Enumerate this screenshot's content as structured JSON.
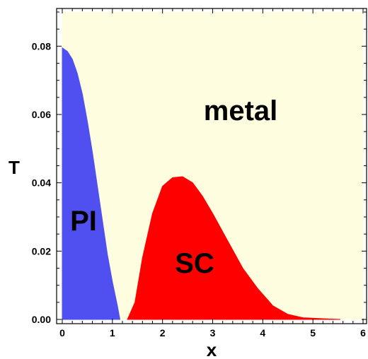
{
  "chart_data": {
    "type": "area",
    "xlabel": "x",
    "ylabel": "T",
    "xlim": [
      0,
      6
    ],
    "ylim": [
      0,
      0.09
    ],
    "x_ticks": [
      "0",
      "1",
      "2",
      "3",
      "4",
      "5",
      "6"
    ],
    "y_ticks": [
      "0.00",
      "0.02",
      "0.04",
      "0.06",
      "0.08"
    ],
    "regions": [
      {
        "label": "metal",
        "color": "#fffde0"
      },
      {
        "label": "PI",
        "color": "#5050f0",
        "boundary": [
          [
            0,
            0.0795
          ],
          [
            0.1,
            0.0785
          ],
          [
            0.2,
            0.0762
          ],
          [
            0.3,
            0.072
          ],
          [
            0.4,
            0.066
          ],
          [
            0.5,
            0.058
          ],
          [
            0.6,
            0.049
          ],
          [
            0.7,
            0.039
          ],
          [
            0.8,
            0.029
          ],
          [
            0.9,
            0.019
          ],
          [
            1.0,
            0.011
          ],
          [
            1.1,
            0.004
          ],
          [
            1.15,
            0.0
          ]
        ]
      },
      {
        "label": "SC",
        "color": "#ff0000",
        "boundary": [
          [
            1.3,
            0.0
          ],
          [
            1.45,
            0.005
          ],
          [
            1.6,
            0.018
          ],
          [
            1.8,
            0.031
          ],
          [
            2.0,
            0.039
          ],
          [
            2.2,
            0.0415
          ],
          [
            2.4,
            0.0418
          ],
          [
            2.6,
            0.04
          ],
          [
            2.8,
            0.036
          ],
          [
            3.0,
            0.031
          ],
          [
            3.3,
            0.023
          ],
          [
            3.6,
            0.015
          ],
          [
            3.9,
            0.009
          ],
          [
            4.2,
            0.004
          ],
          [
            4.5,
            0.0015
          ],
          [
            4.8,
            0.0005
          ],
          [
            5.2,
            0.0002
          ],
          [
            5.55,
            0.0
          ]
        ]
      }
    ],
    "grid": false,
    "legend": "none"
  }
}
